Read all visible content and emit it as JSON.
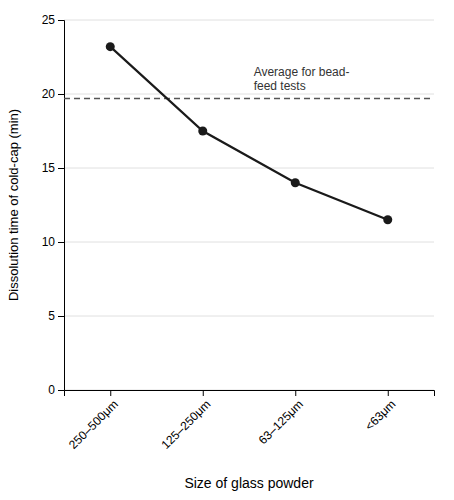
{
  "chart_data": {
    "type": "line",
    "categories": [
      "250–500μm",
      "125–250μm",
      "63–125μm",
      "<63μm"
    ],
    "values": [
      23.2,
      17.5,
      14.0,
      11.5
    ],
    "color": "#1a1a1a",
    "marker": "circle",
    "xlabel": "Size of glass powder",
    "ylabel": "Dissolution time of cold-cap (min)",
    "ylim": [
      0,
      25
    ],
    "yticks": [
      0,
      5,
      10,
      15,
      20,
      25
    ],
    "grid": true,
    "annotations": [
      {
        "text": "Average for bead-\nfeed tests",
        "y": 19.7,
        "line_style": "dashed",
        "color": "#555555"
      }
    ]
  }
}
